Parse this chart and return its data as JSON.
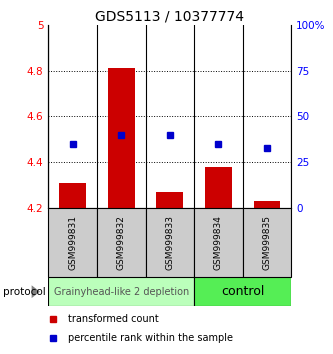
{
  "title": "GDS5113 / 10377774",
  "samples": [
    "GSM999831",
    "GSM999832",
    "GSM999833",
    "GSM999834",
    "GSM999835"
  ],
  "red_values": [
    4.31,
    4.81,
    4.27,
    4.38,
    4.23
  ],
  "blue_values": [
    35,
    40,
    40,
    35,
    33
  ],
  "ylim_left": [
    4.2,
    5.0
  ],
  "ylim_right": [
    0,
    100
  ],
  "yticks_left": [
    4.2,
    4.4,
    4.6,
    4.8,
    5.0
  ],
  "ytick_labels_left": [
    "4.2",
    "4.4",
    "4.6",
    "4.8",
    "5"
  ],
  "yticks_right": [
    0,
    25,
    50,
    75,
    100
  ],
  "ytick_labels_right": [
    "0",
    "25",
    "50",
    "75",
    "100%"
  ],
  "dotted_lines": [
    4.4,
    4.6,
    4.8
  ],
  "bar_width": 0.55,
  "bar_color": "#cc0000",
  "dot_color": "#0000cc",
  "bar_bottom": 4.2,
  "group1_samples": [
    0,
    1,
    2
  ],
  "group2_samples": [
    3,
    4
  ],
  "group1_label": "Grainyhead-like 2 depletion",
  "group2_label": "control",
  "group1_color": "#bbffbb",
  "group2_color": "#55ee55",
  "protocol_label": "protocol",
  "legend_red": "transformed count",
  "legend_blue": "percentile rank within the sample",
  "bg_sample_color": "#cccccc",
  "title_fontsize": 10,
  "axis_fontsize": 7.5,
  "sample_label_fontsize": 6.5,
  "group_label_fontsize": 7
}
